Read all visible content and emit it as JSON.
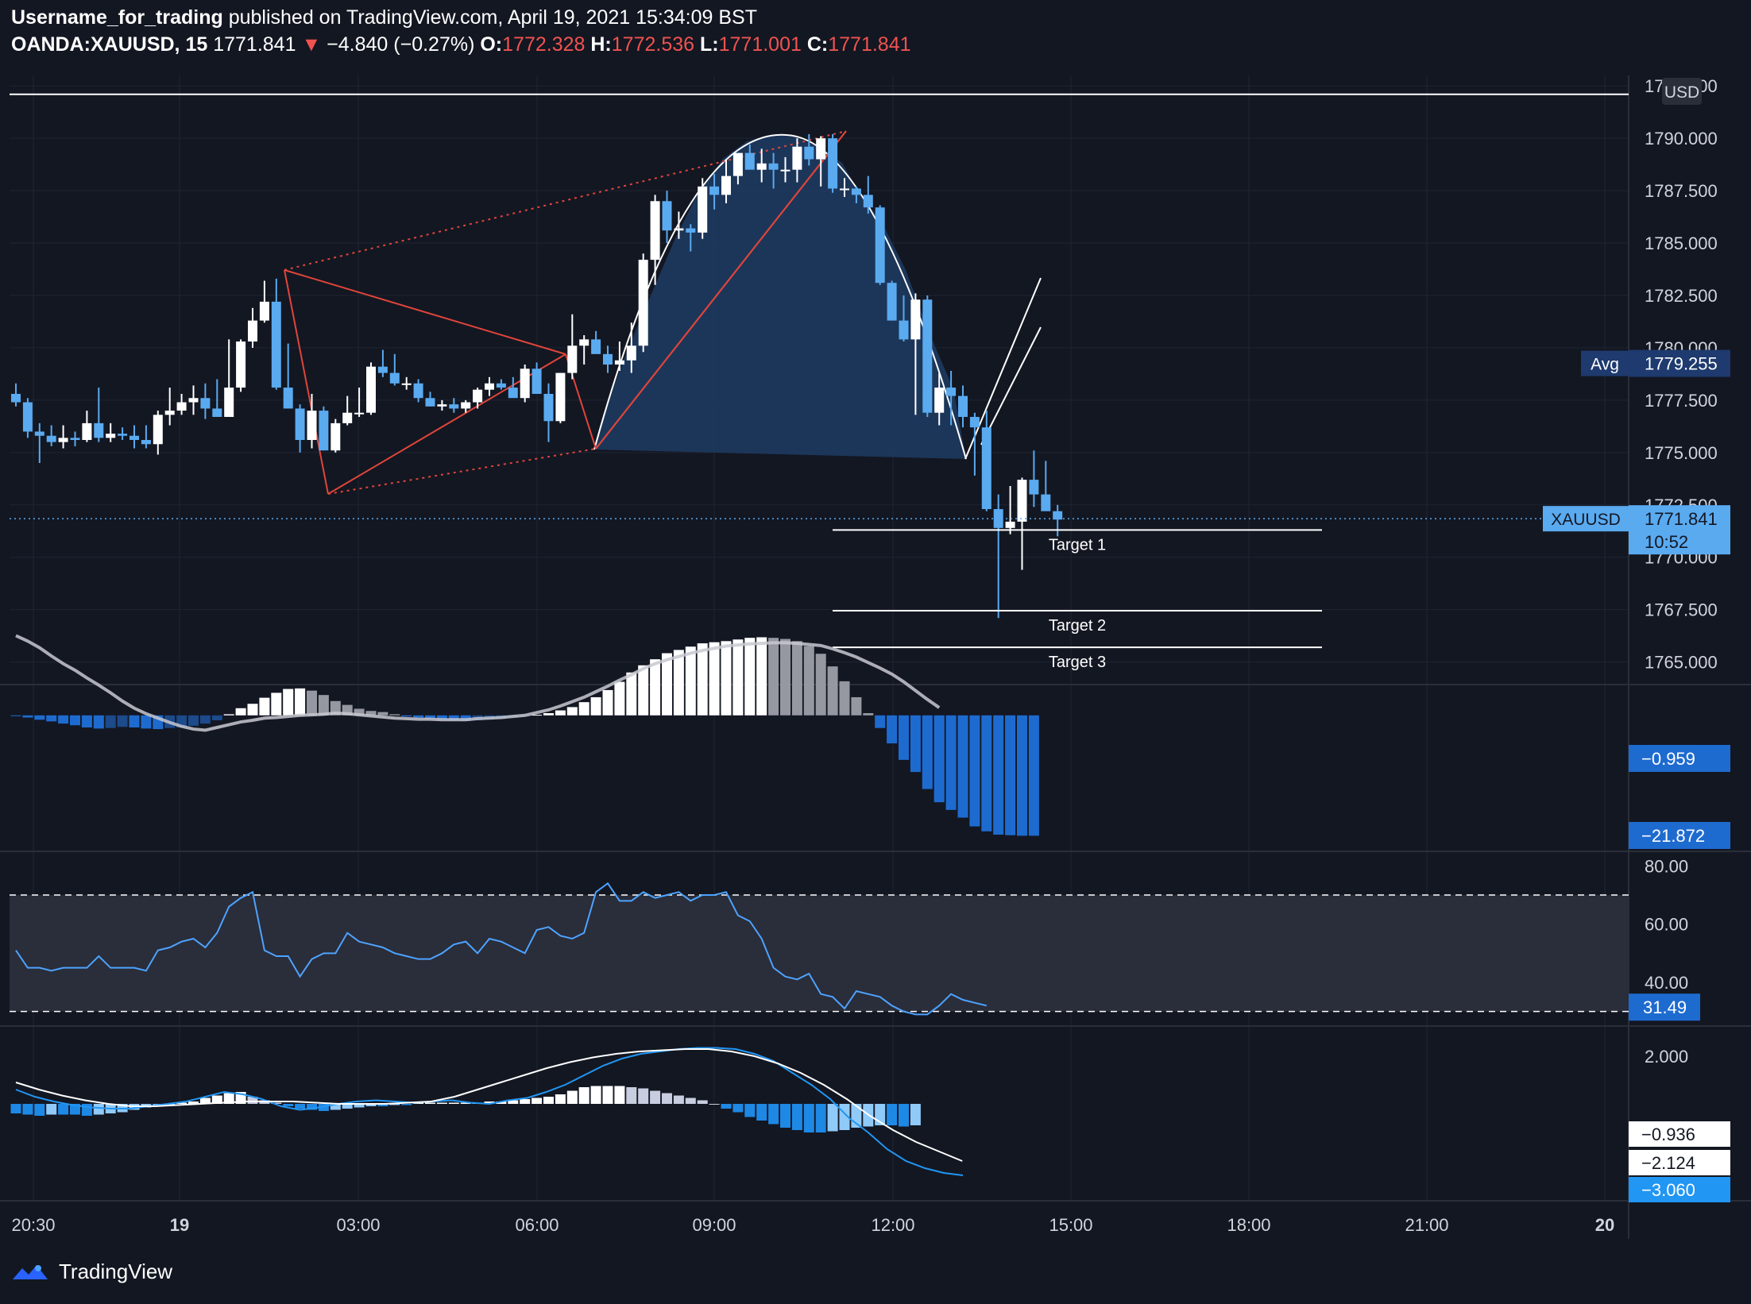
{
  "header": {
    "author": "Username_for_trading",
    "published": "published on TradingView.com, April 19, 2021 15:34:09 BST",
    "symbol": "OANDA:XAUUSD, 15",
    "last": "1771.841",
    "change": "−4.840 (−0.27%)",
    "o_label": "O:",
    "o": "1772.328",
    "h_label": "H:",
    "h": "1772.536",
    "l_label": "L:",
    "l": "1771.001",
    "c_label": "C:",
    "c": "1771.841"
  },
  "footer": {
    "brand": "TradingView"
  },
  "colors": {
    "background": "#131722",
    "up_body": "#ffffff",
    "down_body": "#5aaaf0",
    "pattern": "#e0453a",
    "cup_fill": "#1e3a5f",
    "label_bg": "#5aaaf0",
    "grid": "#1f2433"
  },
  "chart_data": [
    {
      "type": "candlestick",
      "panel": "price",
      "ylim": [
        1764,
        1793
      ],
      "yticks": [
        "1765.000",
        "1767.500",
        "1770.000",
        "1772.500",
        "1775.000",
        "1777.500",
        "1780.000",
        "1782.500",
        "1785.000",
        "1787.500",
        "1790.000",
        "1792.500"
      ],
      "xticks": [
        "20:30",
        "19",
        "03:00",
        "06:00",
        "09:00",
        "12:00",
        "15:00",
        "18:00",
        "21:00",
        "20"
      ],
      "currency": "USD",
      "candles": [
        [
          1777.8,
          1778.3,
          1777.2,
          1777.4
        ],
        [
          1777.4,
          1777.6,
          1775.7,
          1776.0
        ],
        [
          1776.0,
          1776.4,
          1774.5,
          1775.8
        ],
        [
          1775.8,
          1776.3,
          1775.3,
          1775.5
        ],
        [
          1775.5,
          1776.3,
          1775.2,
          1775.7
        ],
        [
          1775.7,
          1776.0,
          1775.3,
          1775.6
        ],
        [
          1775.6,
          1777.0,
          1775.5,
          1776.4
        ],
        [
          1776.4,
          1778.1,
          1775.5,
          1775.7
        ],
        [
          1775.7,
          1776.4,
          1775.5,
          1775.9
        ],
        [
          1775.9,
          1776.2,
          1775.6,
          1775.8
        ],
        [
          1775.8,
          1776.3,
          1775.2,
          1775.6
        ],
        [
          1775.6,
          1776.3,
          1775.2,
          1775.4
        ],
        [
          1775.4,
          1777.0,
          1774.9,
          1776.8
        ],
        [
          1776.8,
          1778.1,
          1776.3,
          1777.0
        ],
        [
          1777.0,
          1777.8,
          1776.8,
          1777.4
        ],
        [
          1777.4,
          1778.2,
          1776.8,
          1777.6
        ],
        [
          1777.6,
          1778.3,
          1776.6,
          1777.1
        ],
        [
          1777.1,
          1778.5,
          1776.9,
          1776.7
        ],
        [
          1776.7,
          1780.4,
          1776.7,
          1778.1
        ],
        [
          1778.1,
          1780.4,
          1777.9,
          1780.3
        ],
        [
          1780.3,
          1781.9,
          1780.0,
          1781.3
        ],
        [
          1781.3,
          1783.2,
          1781.2,
          1782.2
        ],
        [
          1782.2,
          1783.3,
          1778.0,
          1778.1
        ],
        [
          1778.1,
          1780.2,
          1777.1,
          1777.1
        ],
        [
          1777.1,
          1777.3,
          1775.0,
          1775.6
        ],
        [
          1775.6,
          1777.8,
          1775.2,
          1777.0
        ],
        [
          1777.0,
          1777.2,
          1775.1,
          1775.1
        ],
        [
          1775.1,
          1776.6,
          1775.0,
          1776.4
        ],
        [
          1776.4,
          1777.7,
          1776.3,
          1776.9
        ],
        [
          1776.9,
          1778.1,
          1776.7,
          1776.9
        ],
        [
          1776.9,
          1779.3,
          1776.8,
          1779.1
        ],
        [
          1779.1,
          1779.9,
          1778.6,
          1778.8
        ],
        [
          1778.8,
          1779.7,
          1778.2,
          1778.3
        ],
        [
          1778.3,
          1778.6,
          1778.0,
          1778.3
        ],
        [
          1778.3,
          1778.5,
          1777.4,
          1777.6
        ],
        [
          1777.6,
          1777.9,
          1777.2,
          1777.2
        ],
        [
          1777.2,
          1777.5,
          1777.0,
          1777.3
        ],
        [
          1777.3,
          1777.6,
          1776.9,
          1777.1
        ],
        [
          1777.1,
          1777.5,
          1776.9,
          1777.4
        ],
        [
          1777.4,
          1778.1,
          1777.1,
          1778.0
        ],
        [
          1778.0,
          1778.6,
          1777.7,
          1778.3
        ],
        [
          1778.3,
          1778.5,
          1778.0,
          1778.1
        ],
        [
          1778.1,
          1778.6,
          1777.7,
          1777.6
        ],
        [
          1777.6,
          1779.2,
          1777.4,
          1779.0
        ],
        [
          1779.0,
          1779.3,
          1777.8,
          1777.8
        ],
        [
          1777.8,
          1778.3,
          1775.5,
          1776.5
        ],
        [
          1776.5,
          1778.8,
          1776.4,
          1778.8
        ],
        [
          1778.8,
          1781.6,
          1778.5,
          1780.1
        ],
        [
          1780.1,
          1780.6,
          1779.2,
          1780.4
        ],
        [
          1780.4,
          1780.8,
          1779.8,
          1779.7
        ],
        [
          1779.7,
          1780.1,
          1778.8,
          1779.2
        ],
        [
          1779.2,
          1780.3,
          1778.9,
          1779.4
        ],
        [
          1779.4,
          1781.2,
          1778.8,
          1780.1
        ],
        [
          1780.1,
          1784.5,
          1779.8,
          1784.2
        ],
        [
          1784.2,
          1787.3,
          1783.0,
          1787.0
        ],
        [
          1787.0,
          1787.5,
          1785.0,
          1785.6
        ],
        [
          1785.6,
          1786.5,
          1785.2,
          1785.7
        ],
        [
          1785.7,
          1785.9,
          1784.6,
          1785.5
        ],
        [
          1785.5,
          1788.1,
          1785.2,
          1787.7
        ],
        [
          1787.7,
          1788.3,
          1786.6,
          1787.3
        ],
        [
          1787.3,
          1789.0,
          1786.9,
          1788.2
        ],
        [
          1788.2,
          1789.2,
          1787.8,
          1789.3
        ],
        [
          1789.3,
          1789.7,
          1788.7,
          1788.5
        ],
        [
          1788.5,
          1789.5,
          1787.9,
          1788.8
        ],
        [
          1788.8,
          1789.3,
          1787.6,
          1788.5
        ],
        [
          1788.5,
          1789.1,
          1787.9,
          1788.5
        ],
        [
          1788.5,
          1790.0,
          1787.9,
          1789.6
        ],
        [
          1789.6,
          1790.2,
          1788.7,
          1789.0
        ],
        [
          1789.0,
          1790.1,
          1787.7,
          1790.0
        ],
        [
          1790.0,
          1790.2,
          1787.4,
          1787.6
        ],
        [
          1787.6,
          1788.1,
          1787.2,
          1787.6
        ],
        [
          1787.6,
          1787.7,
          1786.9,
          1787.3
        ],
        [
          1787.3,
          1788.2,
          1786.4,
          1786.7
        ],
        [
          1786.7,
          1786.8,
          1783.0,
          1783.1
        ],
        [
          1783.1,
          1783.2,
          1781.3,
          1781.3
        ],
        [
          1781.3,
          1782.5,
          1780.3,
          1780.4
        ],
        [
          1780.4,
          1782.6,
          1776.8,
          1782.3
        ],
        [
          1782.3,
          1782.5,
          1776.7,
          1776.9
        ],
        [
          1776.9,
          1778.8,
          1776.3,
          1778.1
        ],
        [
          1778.1,
          1778.9,
          1776.3,
          1777.7
        ],
        [
          1777.7,
          1778.2,
          1776.2,
          1776.7
        ],
        [
          1776.7,
          1776.9,
          1773.9,
          1776.2
        ],
        [
          1776.2,
          1777.0,
          1772.2,
          1772.3
        ],
        [
          1772.3,
          1773.0,
          1767.1,
          1771.4
        ],
        [
          1771.4,
          1773.4,
          1771.1,
          1771.7
        ],
        [
          1771.7,
          1773.8,
          1769.4,
          1773.7
        ],
        [
          1773.7,
          1775.1,
          1772.4,
          1773.0
        ],
        [
          1773.0,
          1774.6,
          1772.4,
          1772.2
        ],
        [
          1772.2,
          1772.5,
          1771.0,
          1771.8
        ]
      ],
      "avg_label": "Avg",
      "avg_value": "1779.255",
      "last_label": "XAUUSD",
      "last_value": "1771.841",
      "countdown": "10:52",
      "top_line_value": 1792.1,
      "targets": [
        {
          "label": "Target 1",
          "value": 1771.3
        },
        {
          "label": "Target 2",
          "value": 1767.45
        },
        {
          "label": "Target 3",
          "value": 1765.7
        }
      ]
    },
    {
      "type": "histogram",
      "panel": "momentum",
      "ylim": [
        -23,
        3
      ],
      "histogram": [
        -0.1,
        -0.4,
        -0.8,
        -1.1,
        -1.5,
        -1.8,
        -2.2,
        -2.4,
        -2.3,
        -2.1,
        -2.2,
        -2.4,
        -2.5,
        -2.3,
        -2.2,
        -1.9,
        -1.5,
        -0.9,
        0.2,
        1.3,
        2.1,
        3.2,
        4.1,
        4.8,
        4.9,
        4.5,
        3.7,
        2.6,
        1.9,
        1.2,
        0.8,
        0.6,
        0.2,
        -0.2,
        -0.4,
        -0.6,
        -0.8,
        -0.9,
        -1.0,
        -0.9,
        -0.7,
        -0.6,
        -0.3,
        -0.2,
        0.1,
        0.4,
        0.9,
        1.5,
        2.4,
        3.3,
        4.6,
        6.1,
        7.8,
        9.1,
        10.2,
        11.3,
        11.9,
        12.5,
        13.1,
        13.3,
        13.5,
        13.8,
        14.1,
        14.2,
        14.1,
        13.9,
        13.5,
        12.6,
        11.2,
        8.9,
        6.2,
        3.3,
        0.4,
        -2.3,
        -5.1,
        -8.1,
        -10.3,
        -13.4,
        -15.8,
        -17.2,
        -18.6,
        -20.2,
        -21.1,
        -21.7,
        -21.8,
        -21.9,
        -21.9
      ],
      "signal": [
        14.5,
        13.5,
        12.3,
        10.8,
        9.4,
        8.2,
        6.8,
        5.5,
        4.1,
        2.6,
        1.3,
        0.3,
        -0.5,
        -1.3,
        -2.0,
        -2.5,
        -2.7,
        -2.2,
        -1.7,
        -1.2,
        -0.9,
        -0.5,
        -0.4,
        -0.2,
        0.0,
        0.1,
        0.2,
        0.4,
        0.3,
        0.1,
        -0.1,
        -0.3,
        -0.5,
        -0.6,
        -0.7,
        -0.7,
        -0.8,
        -0.8,
        -0.8,
        -0.6,
        -0.5,
        -0.4,
        -0.2,
        0.0,
        0.5,
        1.0,
        1.7,
        2.5,
        3.3,
        4.3,
        5.3,
        6.4,
        7.4,
        8.5,
        9.4,
        10.1,
        10.7,
        11.3,
        11.8,
        12.2,
        12.6,
        12.8,
        13.0,
        13.1,
        13.2,
        13.2,
        13.1,
        12.9,
        12.7,
        12.1,
        11.4,
        10.6,
        9.6,
        8.6,
        7.5,
        6.1,
        4.5,
        2.9,
        1.4
      ],
      "labels": [
        "−0.959",
        "−21.872"
      ]
    },
    {
      "type": "line",
      "panel": "rsi",
      "ylim": [
        25,
        85
      ],
      "yticks": [
        "40.00",
        "60.00",
        "80.00"
      ],
      "bands": [
        30,
        70
      ],
      "values": [
        51,
        45,
        45,
        44,
        45,
        45,
        45,
        49,
        45,
        45,
        45,
        44,
        51,
        52,
        54,
        55,
        52,
        57,
        66,
        69,
        71,
        51,
        49,
        49,
        42,
        48,
        50,
        50,
        57,
        54,
        53,
        52,
        50,
        49,
        48,
        48,
        50,
        53,
        54,
        50,
        55,
        54,
        52,
        50,
        58,
        59,
        56,
        55,
        57,
        71,
        74,
        68,
        68,
        71,
        69,
        70,
        71,
        68,
        70,
        70,
        71,
        63,
        61,
        55,
        45,
        42,
        41,
        43,
        36,
        35,
        31,
        37,
        36,
        35,
        32,
        30,
        29,
        29,
        32,
        36,
        34,
        33,
        32
      ],
      "last_label": "31.49"
    },
    {
      "type": "histogram",
      "panel": "macd",
      "ylim": [
        -4,
        3
      ],
      "histogram": [
        -0.4,
        -0.45,
        -0.5,
        -0.45,
        -0.45,
        -0.45,
        -0.5,
        -0.45,
        -0.4,
        -0.35,
        -0.25,
        -0.15,
        -0.1,
        -0.05,
        0.05,
        0.1,
        0.25,
        0.35,
        0.45,
        0.5,
        0.3,
        0.15,
        0.05,
        -0.1,
        -0.2,
        -0.25,
        -0.3,
        -0.25,
        -0.2,
        -0.15,
        -0.1,
        -0.1,
        -0.05,
        -0.05,
        0.05,
        0.05,
        0.05,
        0.05,
        0.05,
        0.05,
        0.1,
        0.1,
        0.15,
        0.2,
        0.25,
        0.3,
        0.4,
        0.55,
        0.7,
        0.75,
        0.75,
        0.75,
        0.7,
        0.65,
        0.55,
        0.45,
        0.35,
        0.25,
        0.15,
        0.0,
        -0.2,
        -0.35,
        -0.55,
        -0.7,
        -0.85,
        -1.0,
        -1.1,
        -1.2,
        -1.2,
        -1.15,
        -1.1,
        -1.0,
        -0.95,
        -0.9,
        -0.9,
        -0.95,
        -0.9
      ],
      "macd": [
        0.6,
        0.3,
        0.1,
        -0.05,
        -0.15,
        -0.2,
        -0.2,
        -0.1,
        0.0,
        0.1,
        0.3,
        0.5,
        0.4,
        0.2,
        -0.1,
        -0.25,
        -0.15,
        0.0,
        0.1,
        0.15,
        0.1,
        0.05,
        0.1,
        0.15,
        0.05,
        0.0,
        0.15,
        0.25,
        0.5,
        0.8,
        1.2,
        1.6,
        1.9,
        2.1,
        2.2,
        2.3,
        2.35,
        2.35,
        2.3,
        2.1,
        1.8,
        1.3,
        0.8,
        0.2,
        -0.6,
        -1.2,
        -1.9,
        -2.4,
        -2.7,
        -2.9,
        -3.0
      ],
      "signal": [
        0.9,
        0.6,
        0.35,
        0.15,
        0.0,
        -0.1,
        -0.1,
        -0.05,
        0.0,
        0.05,
        0.1,
        0.1,
        0.1,
        0.05,
        0.0,
        0.0,
        0.0,
        0.05,
        0.1,
        0.3,
        0.6,
        0.9,
        1.2,
        1.5,
        1.75,
        1.95,
        2.1,
        2.2,
        2.25,
        2.3,
        2.3,
        2.2,
        2.0,
        1.7,
        1.3,
        0.8,
        0.2,
        -0.5,
        -1.1,
        -1.6,
        -2.0,
        -2.4
      ],
      "labels": [
        "2.000",
        "−0.936",
        "−2.124",
        "−3.060"
      ]
    }
  ]
}
